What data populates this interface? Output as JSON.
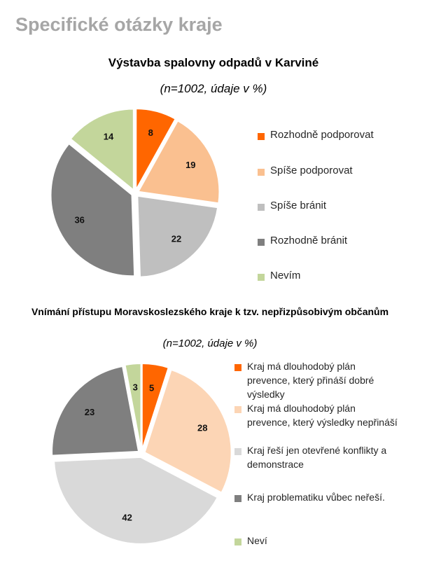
{
  "page_title": "Specifické otázky kraje",
  "chart_data": [
    {
      "type": "pie",
      "title": "Výstavba spalovny odpadů v Karviné",
      "subtitle": "(n=1002, údaje v %)",
      "categories": [
        "Rozhodně podporovat",
        "Spíše podporovat",
        "Spíše bránit",
        "Rozhodně bránit",
        "Nevím"
      ],
      "values": [
        8,
        19,
        22,
        36,
        14
      ],
      "colors": [
        "#ff6600",
        "#fac090",
        "#bfbfbf",
        "#7f7f7f",
        "#c3d69b"
      ]
    },
    {
      "type": "pie",
      "title": "Vnímání přístupu Moravskoslezského kraje k tzv. nepřizpůsobivým občanům",
      "subtitle": "(n=1002, údaje v %)",
      "categories": [
        "Kraj má dlouhodobý plán prevence, který přináší dobré výsledky",
        "Kraj má dlouhodobý plán prevence, který výsledky nepřináší",
        "Kraj řeší jen otevřené konflikty a demonstrace",
        "Kraj problematiku vůbec neřeší.",
        "Neví"
      ],
      "values": [
        5,
        28,
        42,
        23,
        3
      ],
      "colors": [
        "#ff6600",
        "#fcd5b5",
        "#d9d9d9",
        "#7f7f7f",
        "#c3d69b"
      ]
    }
  ]
}
